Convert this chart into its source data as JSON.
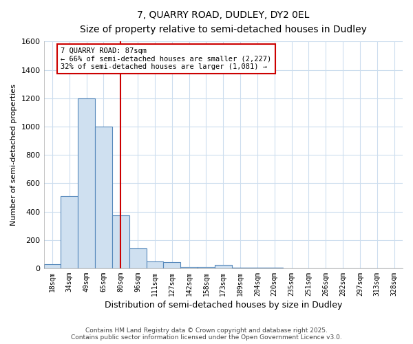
{
  "title_line1": "7, QUARRY ROAD, DUDLEY, DY2 0EL",
  "title_line2": "Size of property relative to semi-detached houses in Dudley",
  "xlabel": "Distribution of semi-detached houses by size in Dudley",
  "ylabel": "Number of semi-detached properties",
  "categories": [
    "18sqm",
    "34sqm",
    "49sqm",
    "65sqm",
    "80sqm",
    "96sqm",
    "111sqm",
    "127sqm",
    "142sqm",
    "158sqm",
    "173sqm",
    "189sqm",
    "204sqm",
    "220sqm",
    "235sqm",
    "251sqm",
    "266sqm",
    "282sqm",
    "297sqm",
    "313sqm",
    "328sqm"
  ],
  "values": [
    30,
    510,
    1200,
    1000,
    375,
    140,
    50,
    45,
    10,
    10,
    25,
    5,
    5,
    3,
    2,
    2,
    1,
    1,
    1,
    1,
    1
  ],
  "bar_color": "#cfe0f0",
  "bar_edge_color": "#5588bb",
  "vline_bin_index": 4,
  "vline_color": "#cc0000",
  "annotation_text": "7 QUARRY ROAD: 87sqm\n← 66% of semi-detached houses are smaller (2,227)\n32% of semi-detached houses are larger (1,081) →",
  "annotation_box_color": "#cc0000",
  "footer_line1": "Contains HM Land Registry data © Crown copyright and database right 2025.",
  "footer_line2": "Contains public sector information licensed under the Open Government Licence v3.0.",
  "background_color": "#ffffff",
  "plot_bg_color": "#ffffff",
  "ylim": [
    0,
    1600
  ],
  "yticks": [
    0,
    200,
    400,
    600,
    800,
    1000,
    1200,
    1400,
    1600
  ],
  "grid_color": "#ccddee"
}
